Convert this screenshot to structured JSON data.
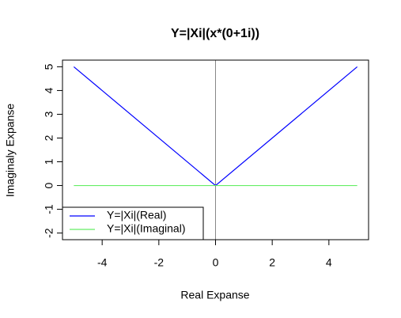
{
  "chart_data": {
    "type": "line",
    "title": "Y=|Xi|(x*(0+1i))",
    "x_label": "Real Expanse",
    "y_label": "Imaginaly Expanse",
    "x": [
      -5,
      0,
      5
    ],
    "series": [
      {
        "name": "Y=|Xi|(Real)",
        "color": "#0000ff",
        "values": [
          5,
          0,
          5
        ]
      },
      {
        "name": "Y=|Xi|(Imaginal)",
        "color": "#66ee66",
        "values": [
          0,
          0,
          0
        ]
      }
    ],
    "vlines": [
      0
    ],
    "xlim": [
      -5.4,
      5.4
    ],
    "xticks": [
      -4,
      -2,
      0,
      2,
      4
    ],
    "ylim": [
      -2.28,
      5.28
    ],
    "yticks": [
      -2,
      -1,
      0,
      1,
      2,
      3,
      4,
      5
    ],
    "legend": "bottom-left"
  }
}
